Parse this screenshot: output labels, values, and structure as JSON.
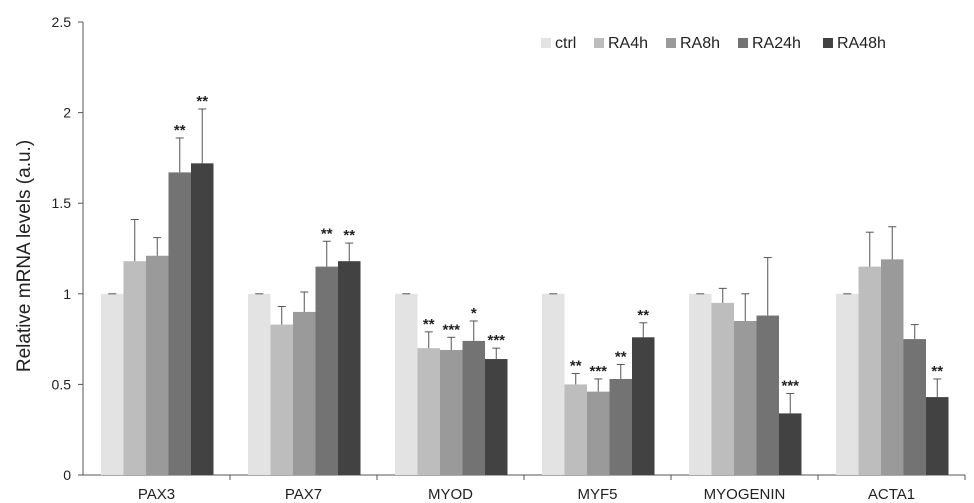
{
  "chart_data": {
    "type": "bar",
    "title": "",
    "xlabel": "",
    "ylabel": "Relative mRNA levels (a.u.)",
    "ylim": [
      0,
      2.5
    ],
    "yticks": [
      "0",
      "0.5",
      "1",
      "1.5",
      "2",
      "2.5"
    ],
    "grid": false,
    "legend_position": "top-right",
    "categories": [
      "PAX3",
      "PAX7",
      "MYOD",
      "MYF5",
      "MYOGENIN",
      "ACTA1"
    ],
    "series": [
      {
        "name": "ctrl",
        "color": "#e3e3e3",
        "values": [
          1.0,
          1.0,
          1.0,
          1.0,
          1.0,
          1.0
        ],
        "errors": [
          0.0,
          0.0,
          0.0,
          0.0,
          0.0,
          0.0
        ],
        "sig": [
          "",
          "",
          "",
          "",
          "",
          ""
        ]
      },
      {
        "name": "RA4h",
        "color": "#bdbdbd",
        "values": [
          1.18,
          0.83,
          0.7,
          0.5,
          0.95,
          1.15
        ],
        "errors": [
          0.23,
          0.1,
          0.09,
          0.06,
          0.08,
          0.19
        ],
        "sig": [
          "",
          "",
          "**",
          "**",
          "",
          ""
        ]
      },
      {
        "name": "RA8h",
        "color": "#9a9a9a",
        "values": [
          1.21,
          0.9,
          0.69,
          0.46,
          0.85,
          1.19
        ],
        "errors": [
          0.1,
          0.11,
          0.07,
          0.07,
          0.15,
          0.18
        ],
        "sig": [
          "",
          "",
          "***",
          "***",
          "",
          ""
        ]
      },
      {
        "name": "RA24h",
        "color": "#737373",
        "values": [
          1.67,
          1.15,
          0.74,
          0.53,
          0.88,
          0.75
        ],
        "errors": [
          0.19,
          0.14,
          0.11,
          0.08,
          0.32,
          0.08
        ],
        "sig": [
          "**",
          "**",
          "*",
          "**",
          "",
          ""
        ]
      },
      {
        "name": "RA48h",
        "color": "#424242",
        "values": [
          1.72,
          1.18,
          0.64,
          0.76,
          0.34,
          0.43
        ],
        "errors": [
          0.3,
          0.1,
          0.06,
          0.08,
          0.11,
          0.1
        ],
        "sig": [
          "**",
          "**",
          "***",
          "**",
          "***",
          "**"
        ]
      }
    ]
  }
}
